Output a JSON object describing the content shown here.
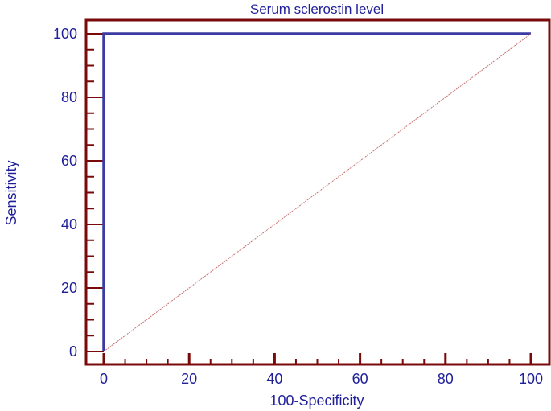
{
  "chart_data": {
    "type": "line",
    "title": "Serum sclerostin level",
    "xlabel": "100-Specificity",
    "ylabel": "Sensitivity",
    "xlim": [
      0,
      100
    ],
    "ylim": [
      0,
      100
    ],
    "x_ticks": [
      "0",
      "20",
      "40",
      "60",
      "80",
      "100"
    ],
    "y_ticks": [
      "0",
      "20",
      "40",
      "60",
      "80",
      "100"
    ],
    "grid": false,
    "series": [
      {
        "kind": "roc-curve",
        "x": [
          0,
          0,
          100
        ],
        "y": [
          0,
          100,
          100
        ],
        "color": "#3b3ba3"
      },
      {
        "kind": "reference-diagonal",
        "x": [
          0,
          100
        ],
        "y": [
          0,
          100
        ],
        "color": "#c87070"
      }
    ],
    "colors": {
      "axis": "#7a0a0a",
      "text": "#1f1f9a"
    }
  }
}
